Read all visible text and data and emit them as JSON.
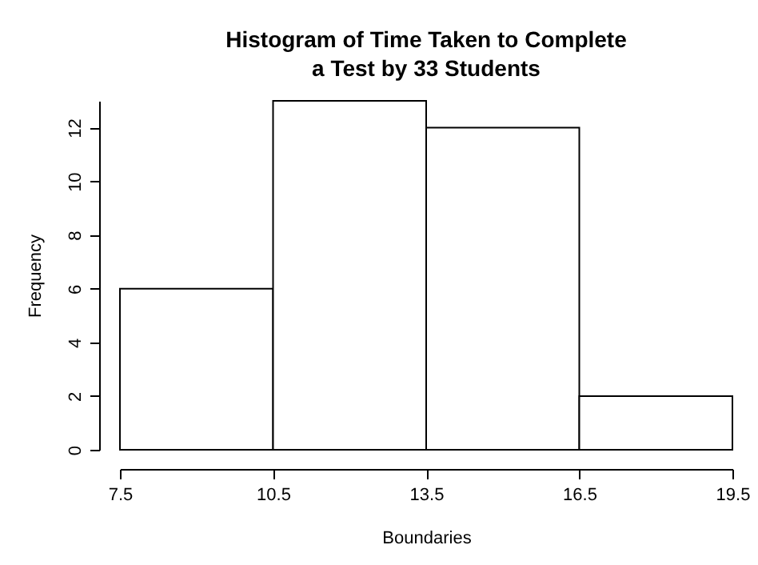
{
  "chart_data": {
    "type": "histogram",
    "title": "Histogram of Time Taken to Complete\na Test by 33 Students",
    "xlabel": "Boundaries",
    "ylabel": "Frequency",
    "bins": [
      7.5,
      10.5,
      13.5,
      16.5,
      19.5
    ],
    "values": [
      6,
      13,
      12,
      2
    ],
    "color": "#ffffff",
    "xlim": [
      7.5,
      19.5
    ],
    "xticks": [
      7.5,
      10.5,
      13.5,
      16.5,
      19.5
    ],
    "ylim": [
      0,
      13
    ],
    "yticks": [
      0,
      2,
      4,
      6,
      8,
      10,
      12
    ],
    "grid": false
  }
}
